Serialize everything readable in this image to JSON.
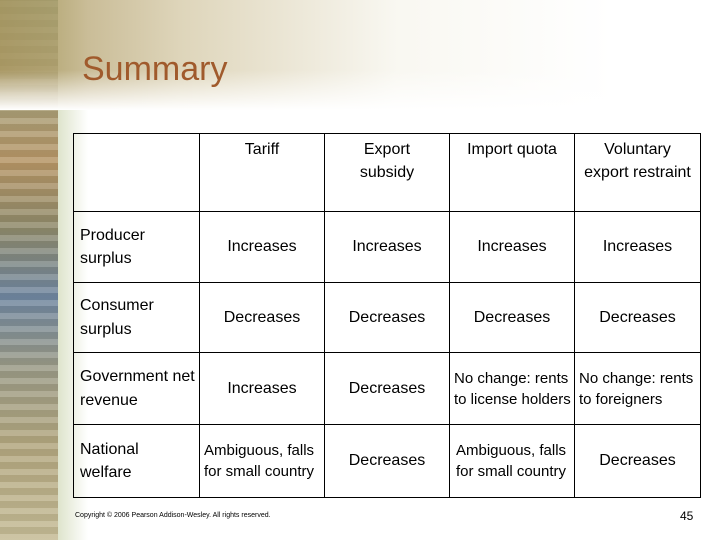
{
  "slide": {
    "title": "Summary",
    "footer": "Copyright © 2006 Pearson Addison-Wesley. All rights reserved.",
    "page_number": "45"
  },
  "table": {
    "headers": [
      "",
      "Tariff",
      "Export subsidy",
      "Import quota",
      "Voluntary export restraint"
    ],
    "rows": [
      {
        "label": "Producer surplus",
        "cells": [
          "Increases",
          "Increases",
          "Increases",
          "Increases"
        ]
      },
      {
        "label": "Consumer surplus",
        "cells": [
          "Decreases",
          "Decreases",
          "Decreases",
          "Decreases"
        ]
      },
      {
        "label": "Government net revenue",
        "cells": [
          "Increases",
          "Decreases",
          "No change: rents to license holders",
          "No change: rents to foreigners"
        ]
      },
      {
        "label": "National welfare",
        "cells": [
          "Ambiguous, falls for small country",
          "Decreases",
          "Ambiguous, falls for small country",
          "Decreases"
        ]
      }
    ]
  }
}
